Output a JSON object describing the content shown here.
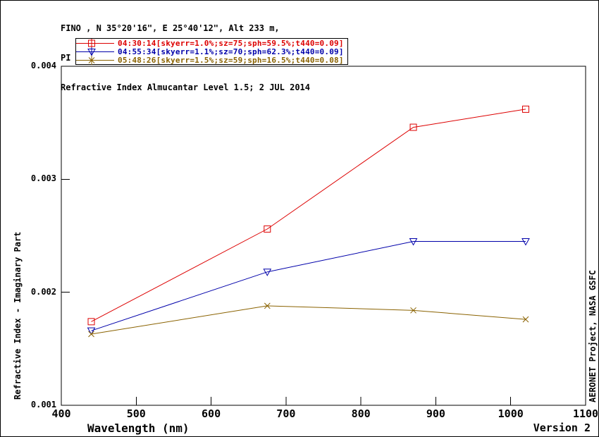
{
  "header": {
    "line1": "FINO , N 35°20'16\", E 25°40'12\", Alt 233 m,",
    "line2": "PI : Brent Holben, Brent.N.Holben@nasa.gov",
    "line3": "Refractive Index Almucantar Level 1.5; 2 JUL 2014"
  },
  "footer": {
    "version": "Version 2",
    "watermark": "AERONET Project, NASA GSFC"
  },
  "colors": {
    "axis": "#000000",
    "background": "#ffffff",
    "series1": "#dd0000",
    "series2": "#0000aa",
    "series3": "#8a6200"
  },
  "chart_data": {
    "type": "line",
    "title": "Refractive Index Almucantar Level 1.5; 2 JUL 2014",
    "xlabel": "Wavelength (nm)",
    "ylabel": "Refractive Index - Imaginary Part",
    "xlim": [
      400,
      1100
    ],
    "ylim": [
      0.001,
      0.004
    ],
    "x_ticks": [
      400,
      500,
      600,
      700,
      800,
      900,
      1000,
      1100
    ],
    "y_ticks": [
      0.001,
      0.002,
      0.003,
      0.004
    ],
    "y_tick_labels": [
      "0.001",
      "0.002",
      "0.003",
      "0.004"
    ],
    "grid": false,
    "legend_position": "top-left",
    "x": [
      440,
      675,
      870,
      1020
    ],
    "series": [
      {
        "name": "04:30:14",
        "label": "04:30:14[skyerr=1.0%;sz=75;sph=59.5%;t440=0.09]",
        "color": "#dd0000",
        "marker": "square",
        "values": [
          0.00174,
          0.00256,
          0.00346,
          0.00362
        ]
      },
      {
        "name": "04:55:34",
        "label": "04:55:34[skyerr=1.1%;sz=70;sph=62.3%;t440=0.09]",
        "color": "#0000aa",
        "marker": "triangle-down",
        "values": [
          0.00166,
          0.00218,
          0.00245,
          0.00245
        ]
      },
      {
        "name": "05:48:26",
        "label": "05:48:26[skyerr=1.5%;sz=59;sph=16.5%;t440=0.08]",
        "color": "#8a6200",
        "marker": "x",
        "values": [
          0.00163,
          0.00188,
          0.00184,
          0.00176
        ]
      }
    ]
  }
}
